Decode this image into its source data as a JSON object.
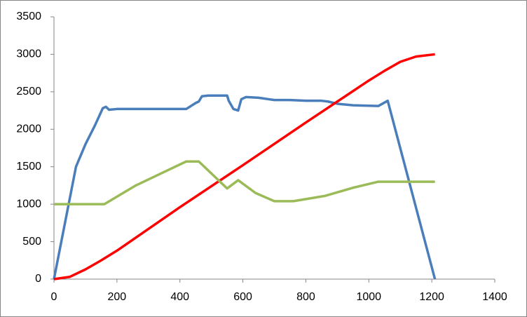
{
  "chart_data": {
    "type": "line",
    "xlim": [
      0,
      1400
    ],
    "xticks": [
      0,
      200,
      400,
      600,
      800,
      1000,
      1200,
      1400
    ],
    "ylim": [
      0,
      3500
    ],
    "yticks": [
      0,
      500,
      1000,
      1500,
      2000,
      2500,
      3000,
      3500
    ],
    "grid": false,
    "series": [
      {
        "color": "#4a7ebb",
        "x": [
          0,
          70,
          100,
          130,
          155,
          165,
          175,
          200,
          250,
          300,
          350,
          420,
          450,
          460,
          470,
          490,
          550,
          555,
          570,
          585,
          595,
          610,
          650,
          700,
          750,
          800,
          850,
          870,
          900,
          950,
          1030,
          1060,
          1210
        ],
        "values": [
          0,
          1500,
          1800,
          2050,
          2280,
          2300,
          2260,
          2270,
          2270,
          2270,
          2270,
          2270,
          2350,
          2370,
          2440,
          2450,
          2450,
          2380,
          2270,
          2250,
          2400,
          2430,
          2420,
          2390,
          2390,
          2380,
          2380,
          2370,
          2340,
          2320,
          2310,
          2380,
          0
        ]
      },
      {
        "color": "#ff0000",
        "x": [
          0,
          50,
          100,
          150,
          200,
          400,
          600,
          800,
          1000,
          1050,
          1100,
          1150,
          1210
        ],
        "values": [
          0,
          30,
          130,
          250,
          380,
          960,
          1520,
          2090,
          2650,
          2780,
          2900,
          2970,
          3000
        ]
      },
      {
        "color": "#9bbb59",
        "x": [
          0,
          160,
          260,
          420,
          460,
          550,
          585,
          640,
          700,
          760,
          860,
          950,
          1030,
          1210
        ],
        "values": [
          1000,
          1000,
          1250,
          1570,
          1570,
          1210,
          1320,
          1150,
          1040,
          1040,
          1110,
          1220,
          1300,
          1300
        ]
      }
    ]
  }
}
